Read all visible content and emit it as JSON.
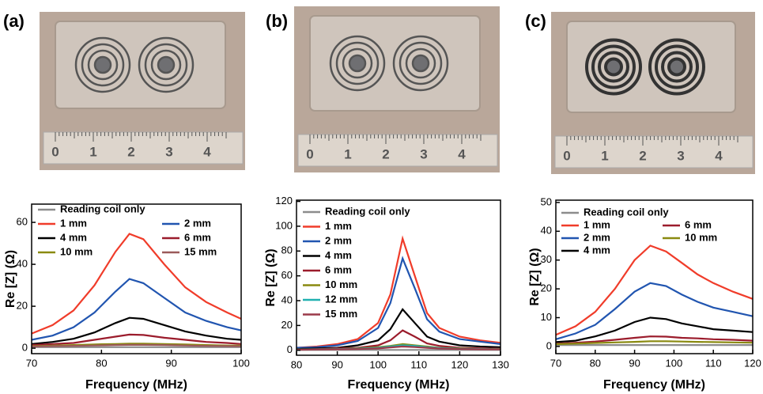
{
  "panels": [
    {
      "label": "(a)",
      "ruler": [
        "0",
        "1",
        "2",
        "3",
        "4"
      ]
    },
    {
      "label": "(b)",
      "ruler": [
        "0",
        "1",
        "2",
        "3",
        "4"
      ]
    },
    {
      "label": "(c)",
      "ruler": [
        "0",
        "1",
        "2",
        "3",
        "4"
      ]
    }
  ],
  "chart_data": [
    {
      "type": "line",
      "x_label": "Frequency (MHz)",
      "y_label": "Re [Z] (Ω)",
      "x": [
        70,
        73,
        76,
        79,
        82,
        84,
        86,
        89,
        92,
        95,
        98,
        100
      ],
      "xlim": [
        70,
        100
      ],
      "xticks": [
        70,
        80,
        90,
        100
      ],
      "ylim": [
        -2.6,
        68.7
      ],
      "yticks": [
        0,
        20,
        40,
        60
      ],
      "series": [
        {
          "name": "Reading coil only",
          "color": "#8c8c8c",
          "values": [
            0.5,
            0.5,
            0.5,
            0.5,
            0.5,
            0.5,
            0.5,
            0.5,
            0.5,
            0.5,
            0.5,
            0.5
          ]
        },
        {
          "name": "1 mm",
          "color": "#f03c2a",
          "values": [
            7,
            11,
            18,
            30,
            46,
            54.5,
            52,
            40,
            29,
            22,
            17,
            14
          ]
        },
        {
          "name": "2 mm",
          "color": "#2155b0",
          "values": [
            4,
            6,
            10,
            17,
            27,
            33,
            31,
            24,
            17,
            13,
            10,
            8.5
          ]
        },
        {
          "name": "4 mm",
          "color": "#000000",
          "values": [
            2,
            3,
            4.5,
            7.5,
            12,
            14.5,
            14,
            11,
            8,
            6,
            4.5,
            4
          ]
        },
        {
          "name": "6 mm",
          "color": "#9b1c2c",
          "values": [
            1.5,
            2,
            2.5,
            4,
            5.5,
            6.5,
            6.3,
            5,
            4,
            3,
            2.5,
            2
          ]
        },
        {
          "name": "10 mm",
          "color": "#8a8a10",
          "values": [
            1,
            1.2,
            1.5,
            1.8,
            2,
            2.2,
            2.2,
            2,
            1.8,
            1.5,
            1.3,
            1.2
          ]
        },
        {
          "name": "15 mm",
          "color": "#9b5a5a",
          "values": [
            0.8,
            1,
            1.1,
            1.3,
            1.5,
            1.6,
            1.6,
            1.5,
            1.3,
            1.1,
            1,
            0.9
          ]
        }
      ]
    },
    {
      "type": "line",
      "x_label": "Frequency (MHz)",
      "y_label": "Re [Z] (Ω)",
      "x": [
        80,
        85,
        90,
        95,
        100,
        103,
        106,
        109,
        112,
        115,
        120,
        125,
        130
      ],
      "xlim": [
        80,
        130
      ],
      "xticks": [
        80,
        90,
        100,
        110,
        120,
        130
      ],
      "ylim": [
        -4,
        121
      ],
      "yticks": [
        0,
        20,
        40,
        60,
        80,
        100,
        120
      ],
      "series": [
        {
          "name": "Reading coil only",
          "color": "#8c8c8c",
          "values": [
            0.3,
            0.3,
            0.3,
            0.3,
            0.3,
            0.3,
            0.3,
            0.3,
            0.3,
            0.3,
            0.3,
            0.3,
            0.3
          ]
        },
        {
          "name": "1 mm",
          "color": "#f03c2a",
          "values": [
            2,
            3,
            5,
            9,
            22,
            45,
            90,
            60,
            30,
            18,
            11,
            8,
            6
          ]
        },
        {
          "name": "2 mm",
          "color": "#2155b0",
          "values": [
            2,
            2.5,
            4,
            7.5,
            18,
            38,
            74,
            50,
            25,
            15,
            9,
            7,
            5
          ]
        },
        {
          "name": "4 mm",
          "color": "#000000",
          "values": [
            1,
            1.5,
            2,
            4,
            8,
            17,
            33,
            22,
            11,
            7,
            4,
            3,
            2.5
          ]
        },
        {
          "name": "6 mm",
          "color": "#9b1c2c",
          "values": [
            0.5,
            1,
            1.5,
            2,
            4,
            8,
            16,
            11,
            5.5,
            3.5,
            2,
            1.5,
            1.2
          ]
        },
        {
          "name": "10 mm",
          "color": "#8a8a10",
          "values": [
            0.5,
            0.7,
            1,
            1.5,
            2.5,
            3.5,
            5,
            4,
            3,
            2,
            1.5,
            1,
            1
          ]
        },
        {
          "name": "12 mm",
          "color": "#20b0b0",
          "values": [
            0.5,
            0.7,
            1,
            1.3,
            2,
            3,
            4,
            3.5,
            2.5,
            1.8,
            1.2,
            1,
            0.8
          ]
        },
        {
          "name": "15 mm",
          "color": "#9b3a4a",
          "values": [
            0.4,
            0.6,
            0.8,
            1,
            1.5,
            2.3,
            3,
            2.6,
            2,
            1.4,
            1,
            0.8,
            0.7
          ]
        }
      ]
    },
    {
      "type": "line",
      "x_label": "Frequency (MHz)",
      "y_label": "Re [Z] (Ω)",
      "x": [
        70,
        75,
        80,
        85,
        90,
        94,
        98,
        102,
        106,
        110,
        115,
        120
      ],
      "xlim": [
        70,
        120
      ],
      "xticks": [
        70,
        80,
        90,
        100,
        110,
        120
      ],
      "ylim": [
        -2.5,
        50.8
      ],
      "yticks": [
        0,
        10,
        20,
        30,
        40,
        50
      ],
      "series": [
        {
          "name": "Reading coil only",
          "color": "#8c8c8c",
          "values": [
            0.5,
            0.5,
            0.5,
            0.5,
            0.5,
            0.5,
            0.5,
            0.5,
            0.5,
            0.5,
            0.5,
            0.5
          ]
        },
        {
          "name": "1 mm",
          "color": "#f03c2a",
          "values": [
            4,
            7,
            12,
            20,
            30,
            35,
            33,
            29,
            25,
            22,
            19,
            16.5
          ]
        },
        {
          "name": "2 mm",
          "color": "#2155b0",
          "values": [
            2.5,
            4.5,
            7.5,
            13,
            19,
            22,
            21,
            18,
            15.5,
            13.5,
            12,
            10.5
          ]
        },
        {
          "name": "4 mm",
          "color": "#000000",
          "values": [
            1.5,
            2,
            3.5,
            5.5,
            8.5,
            10,
            9.5,
            8,
            7,
            6,
            5.5,
            5
          ]
        },
        {
          "name": "6 mm",
          "color": "#9b1c2c",
          "values": [
            1,
            1.3,
            1.7,
            2.3,
            3,
            3.5,
            3.4,
            3,
            2.8,
            2.5,
            2.3,
            2
          ]
        },
        {
          "name": "10 mm",
          "color": "#8a8a10",
          "values": [
            0.8,
            1,
            1.2,
            1.4,
            1.6,
            1.8,
            1.8,
            1.7,
            1.6,
            1.5,
            1.4,
            1.3
          ]
        }
      ]
    }
  ]
}
